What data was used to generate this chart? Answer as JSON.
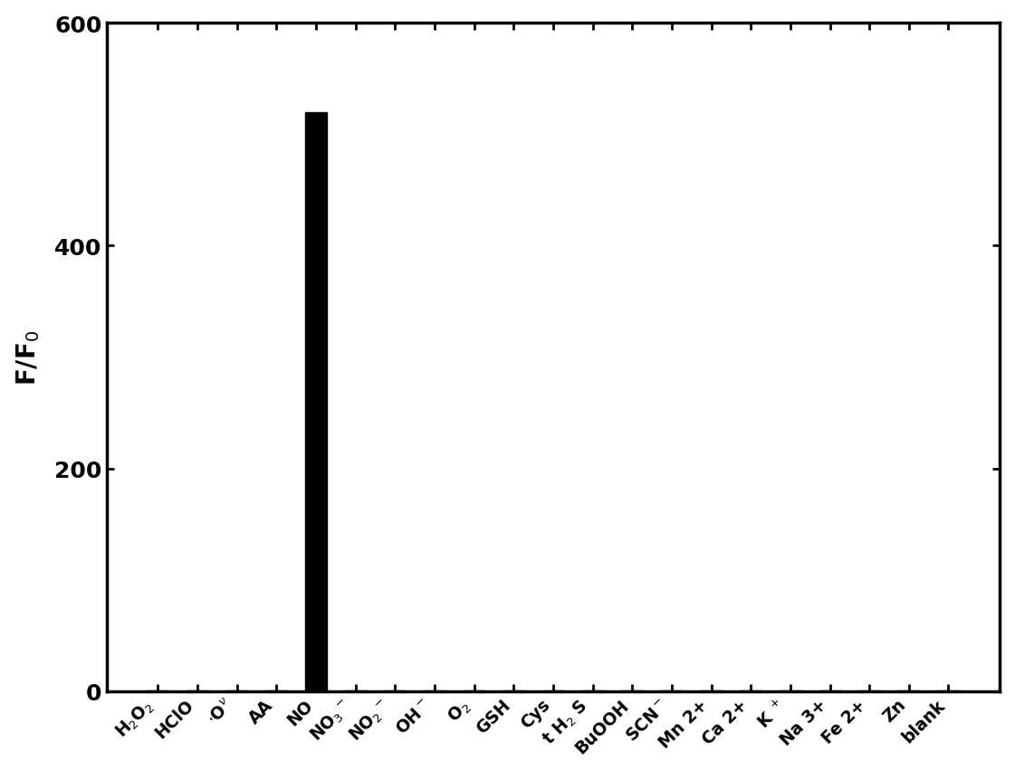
{
  "categories": [
    "H$_2$O$_2$",
    "HClO",
    "$\\cdot$O$^\\nu$",
    "AA",
    "NO",
    "NO$_3$$^-$",
    "NO$_2$$^-$",
    "OH$^-$",
    "O$_2$",
    "GSH",
    "Cys",
    "t H$_2$ S",
    "BuOOH",
    "SCN$^-$",
    "Mn 2+",
    "Ca 2+",
    "K $^+$",
    "Na 3+",
    "Fe 2+",
    "Zn",
    "blank"
  ],
  "values": [
    1,
    1,
    1,
    1,
    520,
    1,
    1,
    1,
    1,
    1,
    1,
    1,
    1,
    1,
    1,
    1,
    1,
    1,
    1,
    1,
    1
  ],
  "bar_color": "#000000",
  "ylabel": "F/F$_0$",
  "ylim": [
    0,
    600
  ],
  "yticks": [
    0,
    200,
    400,
    600
  ],
  "background_color": "#ffffff",
  "bar_width": 0.55,
  "tick_label_fontsize": 13.5,
  "ylabel_fontsize": 20,
  "ytick_fontsize": 18,
  "rotation": 45
}
